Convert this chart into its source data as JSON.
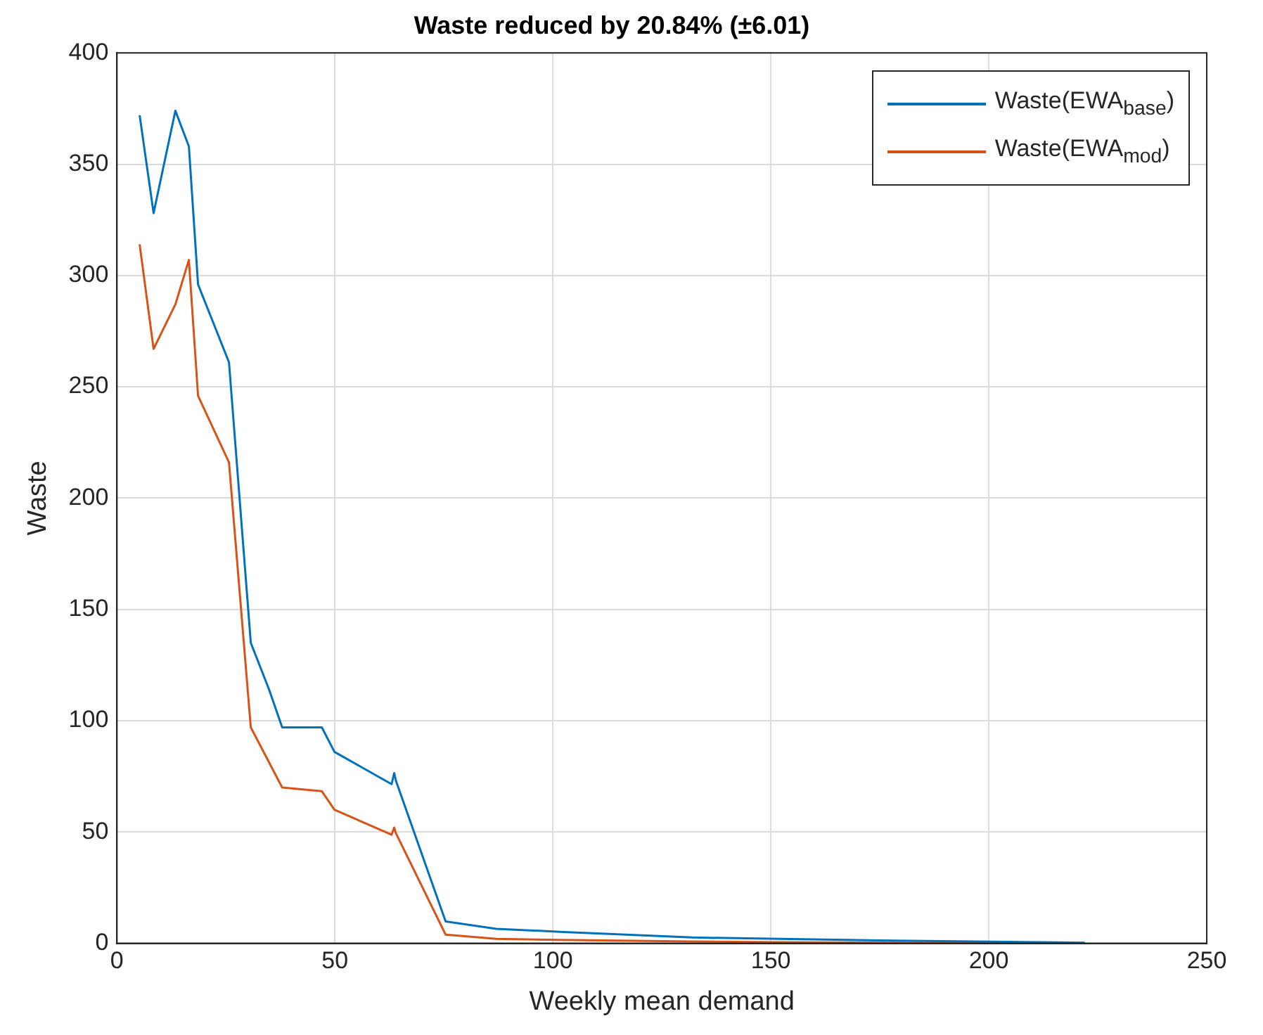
{
  "chart_data": {
    "type": "line",
    "title": "Waste reduced by 20.84% (±6.01)",
    "xlabel": "Weekly mean demand",
    "ylabel": "Waste",
    "x": [
      5.2,
      8.4,
      13.4,
      16.5,
      18.6,
      25.7,
      30.7,
      34.9,
      37.9,
      47,
      49.9,
      63,
      63.6,
      64,
      75.4,
      87,
      101.5,
      132,
      152,
      175,
      222
    ],
    "series": [
      {
        "name": "Waste(EWA$_{base}$)",
        "color": "#0072bd",
        "values": [
          372,
          328,
          374,
          358,
          296,
          261,
          135,
          114,
          97,
          97,
          86,
          71.5,
          76.5,
          73,
          9.8,
          6.5,
          5.2,
          2.6,
          2,
          1.3,
          0.3
        ]
      },
      {
        "name": "Waste(EWA$_{mod}$)",
        "color": "#d95319",
        "values": [
          314,
          267,
          287,
          307,
          246,
          216,
          97,
          null,
          70,
          68.3,
          60,
          48.8,
          52,
          49.4,
          3.9,
          2,
          1.5,
          0.8,
          0.5,
          0.3,
          0
        ]
      }
    ],
    "xlim": [
      0,
      250
    ],
    "xticks": [
      0,
      50,
      100,
      150,
      200,
      250
    ],
    "ylim": [
      0,
      400
    ],
    "yticks": [
      0,
      50,
      100,
      150,
      200,
      250,
      300,
      350,
      400
    ],
    "grid": true,
    "legend": "top right",
    "line_style": "solid",
    "marker": "none"
  }
}
